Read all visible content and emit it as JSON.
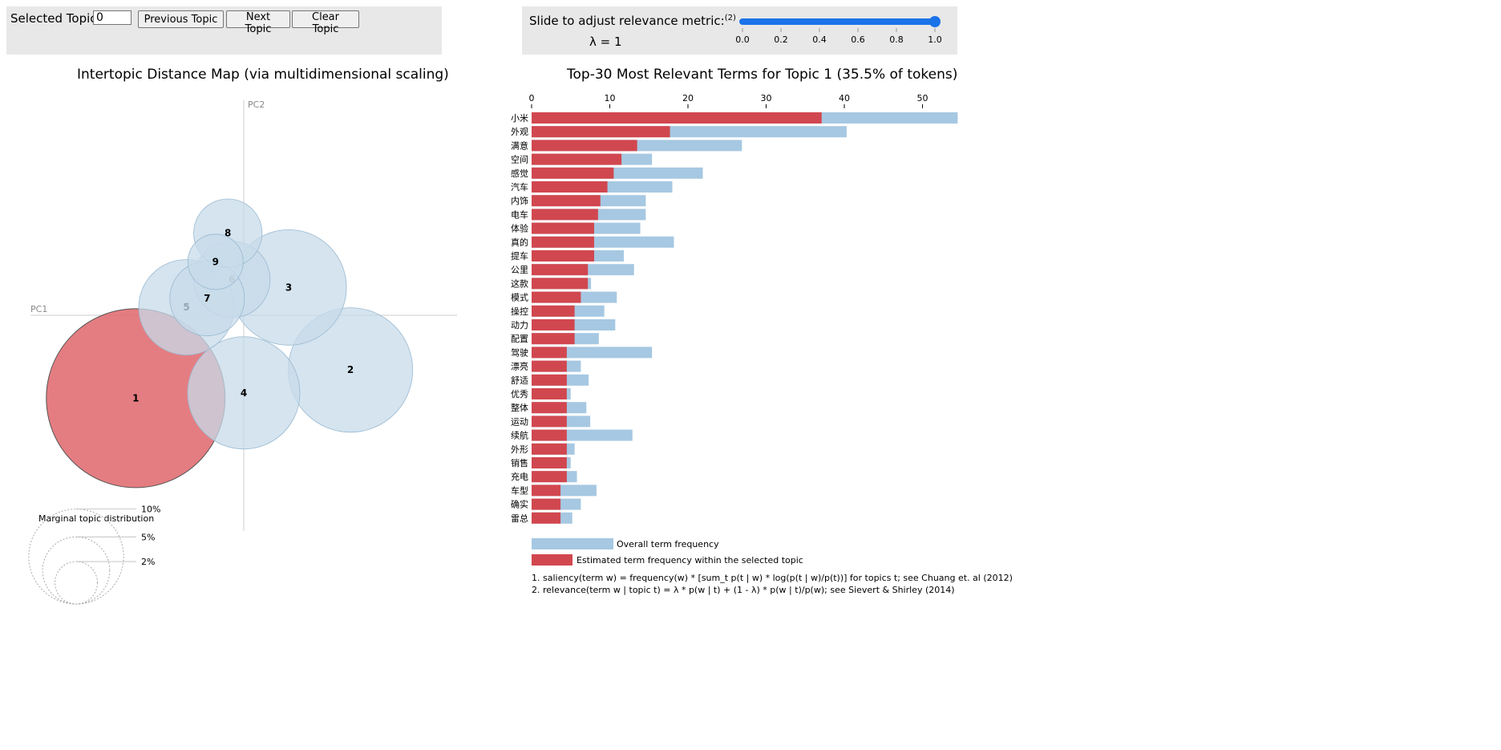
{
  "controls": {
    "selected_topic_label": "Selected Topic:",
    "selected_topic_value": "0",
    "prev_label": "Previous Topic",
    "next_label": "Next Topic",
    "clear_label": "Clear Topic",
    "slider_label": "Slide to adjust relevance metric:",
    "slider_footnote": "(2)",
    "lambda_text": "λ = 1",
    "slider_value": 1.0,
    "slider_ticks": [
      "0.0",
      "0.2",
      "0.4",
      "0.6",
      "0.8",
      "1.0"
    ]
  },
  "colors": {
    "bubble_fill": "#c7dbea",
    "bubble_stroke": "#9ab9d1",
    "selected_bubble_fill": "#e06b6f",
    "bar_overall": "#a6c8e2",
    "bar_topic": "#d1474f",
    "slider_blue": "#1a73e8"
  },
  "chart_data": [
    {
      "type": "scatter",
      "title": "Intertopic Distance Map (via multidimensional scaling)",
      "xlabel": "PC1",
      "ylabel": "PC2",
      "points": [
        {
          "label": "1",
          "x": -0.245,
          "y": -0.188,
          "size": 35.5,
          "selected": true
        },
        {
          "label": "2",
          "x": 0.242,
          "y": -0.124,
          "size": 17.2
        },
        {
          "label": "3",
          "x": 0.102,
          "y": 0.063,
          "size": 14.8
        },
        {
          "label": "4",
          "x": 0.0,
          "y": -0.176,
          "size": 14.0
        },
        {
          "label": "5",
          "x": -0.13,
          "y": 0.018,
          "size": 10.1
        },
        {
          "label": "6",
          "x": -0.027,
          "y": 0.081,
          "size": 6.5
        },
        {
          "label": "7",
          "x": -0.083,
          "y": 0.038,
          "size": 6.2
        },
        {
          "label": "8",
          "x": -0.036,
          "y": 0.186,
          "size": 5.2
        },
        {
          "label": "9",
          "x": -0.064,
          "y": 0.121,
          "size": 3.4
        }
      ],
      "marginal_title": "Marginal topic distribution",
      "marginal_legend": [
        {
          "label": "2%",
          "value": 2
        },
        {
          "label": "5%",
          "value": 5
        },
        {
          "label": "10%",
          "value": 10
        }
      ]
    },
    {
      "type": "bar",
      "orientation": "horizontal",
      "title": "Top-30 Most Relevant Terms for Topic 1 (35.5% of tokens)",
      "xlim": [
        0,
        55
      ],
      "xticks": [
        "0",
        "10",
        "20",
        "30",
        "40",
        "50"
      ],
      "categories": [
        "小米",
        "外观",
        "满意",
        "空间",
        "感觉",
        "汽车",
        "内饰",
        "电车",
        "体验",
        "真的",
        "提车",
        "公里",
        "这款",
        "模式",
        "操控",
        "动力",
        "配置",
        "驾驶",
        "漂亮",
        "舒适",
        "优秀",
        "整体",
        "运动",
        "续航",
        "外形",
        "销售",
        "充电",
        "车型",
        "确实",
        "雷总"
      ],
      "series": [
        {
          "name": "Overall term frequency",
          "values": [
            54.5,
            40.3,
            26.9,
            15.4,
            21.9,
            18.0,
            14.6,
            14.6,
            13.9,
            18.2,
            11.8,
            13.1,
            7.6,
            10.9,
            9.3,
            10.7,
            8.6,
            15.4,
            6.3,
            7.3,
            5.0,
            7.0,
            7.5,
            12.9,
            5.5,
            5.0,
            5.8,
            8.3,
            6.3,
            5.2
          ]
        },
        {
          "name": "Estimated term frequency within the selected topic",
          "values": [
            37.1,
            17.7,
            13.5,
            11.5,
            10.5,
            9.7,
            8.8,
            8.5,
            8.0,
            8.0,
            8.0,
            7.2,
            7.2,
            6.3,
            5.5,
            5.5,
            5.5,
            4.5,
            4.5,
            4.5,
            4.5,
            4.5,
            4.5,
            4.5,
            4.5,
            4.5,
            4.5,
            3.7,
            3.7,
            3.7
          ]
        }
      ],
      "legend_overall": "Overall term frequency",
      "legend_topic": "Estimated term frequency within the selected topic",
      "footnote_1": "1. saliency(term w) = frequency(w) * [sum_t p(t | w) * log(p(t | w)/p(t))] for topics t; see Chuang et. al (2012)",
      "footnote_2": "2. relevance(term w | topic t) = λ * p(w | t) + (1 - λ) * p(w | t)/p(w); see Sievert & Shirley (2014)"
    }
  ]
}
